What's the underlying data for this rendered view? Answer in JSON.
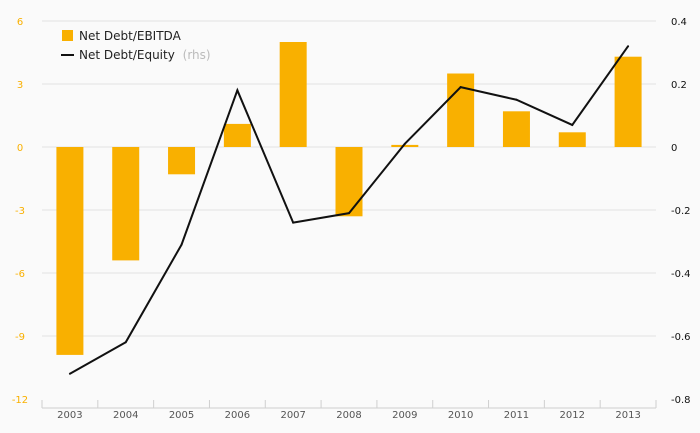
{
  "chart_data": {
    "type": "bar",
    "title": "",
    "categories": [
      "2003",
      "2004",
      "2005",
      "2006",
      "2007",
      "2008",
      "2009",
      "2010",
      "2011",
      "2012",
      "2013"
    ],
    "series": [
      {
        "name": "Net Debt/EBITDA",
        "type": "bar",
        "axis": "left",
        "color": "#f9b000",
        "values": [
          -9.9,
          -5.4,
          -1.3,
          1.1,
          5.0,
          -3.3,
          0.1,
          3.5,
          1.7,
          0.7,
          4.3
        ]
      },
      {
        "name": "Net Debt/Equity",
        "type": "line",
        "axis": "right",
        "color": "#111111",
        "values": [
          -0.72,
          -0.62,
          -0.31,
          0.18,
          -0.24,
          -0.21,
          0.01,
          0.19,
          0.15,
          0.07,
          0.32
        ]
      }
    ],
    "legend_note": "(rhs)",
    "y_left": {
      "range": [
        -12,
        6
      ],
      "ticks": [
        "6",
        "3",
        "0",
        "-3",
        "-6",
        "-9",
        "-12"
      ],
      "tick_color": "#f9b000"
    },
    "y_right": {
      "range": [
        -0.8,
        0.4
      ],
      "ticks": [
        "0.4",
        "0.2",
        "0",
        "-0.2",
        "-0.4",
        "-0.6",
        "-0.8"
      ],
      "tick_color": "#111111"
    },
    "grid": true,
    "legend_position": "top-left"
  }
}
